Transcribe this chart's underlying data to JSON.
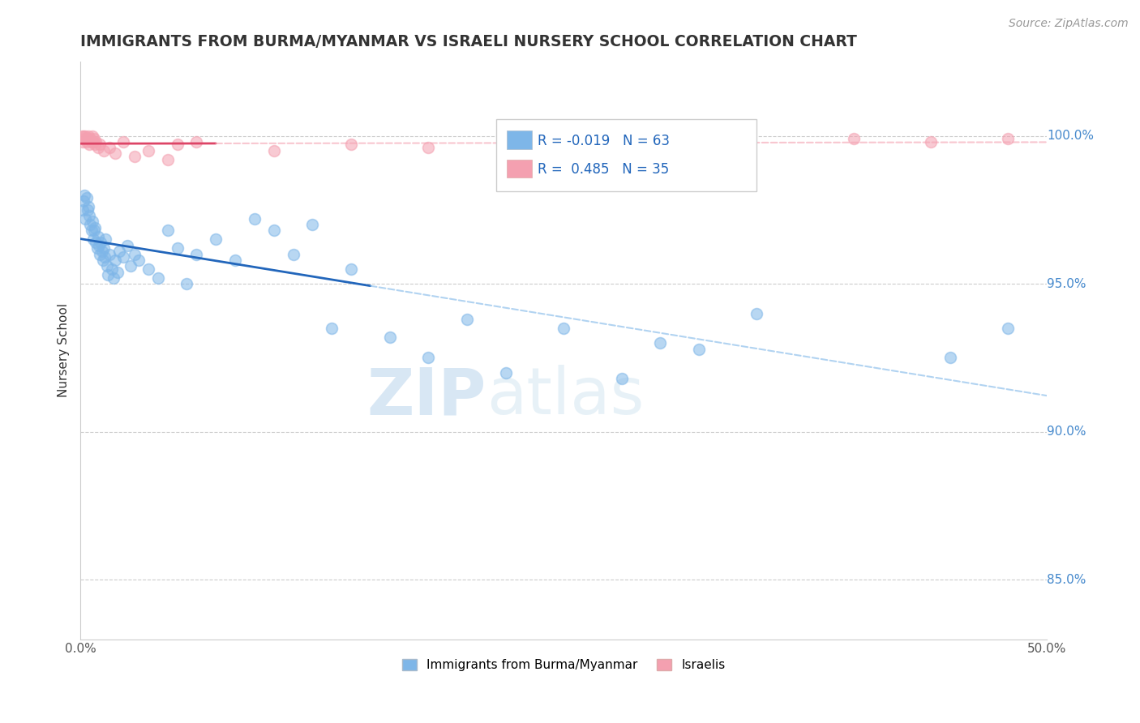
{
  "title": "IMMIGRANTS FROM BURMA/MYANMAR VS ISRAELI NURSERY SCHOOL CORRELATION CHART",
  "source": "Source: ZipAtlas.com",
  "ylabel": "Nursery School",
  "xlim": [
    0.0,
    50.0
  ],
  "ylim": [
    83.0,
    102.5
  ],
  "yticks": [
    85.0,
    90.0,
    95.0,
    100.0
  ],
  "ytick_labels": [
    "85.0%",
    "90.0%",
    "95.0%",
    "100.0%"
  ],
  "xtick_labels": [
    "0.0%",
    "",
    "",
    "",
    "",
    "50.0%"
  ],
  "xticks": [
    0.0,
    10.0,
    20.0,
    30.0,
    40.0,
    50.0
  ],
  "legend_label1": "Immigrants from Burma/Myanmar",
  "legend_label2": "Israelis",
  "R1": -0.019,
  "N1": 63,
  "R2": 0.485,
  "N2": 35,
  "color_blue": "#7EB6E8",
  "color_pink": "#F4A0B0",
  "color_blue_line": "#2266BB",
  "color_pink_line": "#DD4466",
  "color_pink_dashed": "#F4A0B0",
  "color_blue_dashed": "#7EB6E8",
  "watermark_zip": "ZIP",
  "watermark_atlas": "atlas",
  "blue_solid_end": 15.0,
  "pink_solid_end": 7.0,
  "blue_points": [
    [
      0.1,
      97.5
    ],
    [
      0.15,
      97.8
    ],
    [
      0.2,
      98.0
    ],
    [
      0.25,
      97.2
    ],
    [
      0.3,
      97.9
    ],
    [
      0.35,
      97.5
    ],
    [
      0.4,
      97.6
    ],
    [
      0.45,
      97.3
    ],
    [
      0.5,
      97.0
    ],
    [
      0.55,
      96.8
    ],
    [
      0.6,
      97.1
    ],
    [
      0.65,
      96.5
    ],
    [
      0.7,
      96.8
    ],
    [
      0.75,
      96.9
    ],
    [
      0.8,
      96.4
    ],
    [
      0.85,
      96.2
    ],
    [
      0.9,
      96.6
    ],
    [
      0.95,
      96.3
    ],
    [
      1.0,
      96.0
    ],
    [
      1.05,
      96.4
    ],
    [
      1.1,
      96.1
    ],
    [
      1.15,
      95.8
    ],
    [
      1.2,
      96.2
    ],
    [
      1.25,
      95.9
    ],
    [
      1.3,
      96.5
    ],
    [
      1.35,
      95.6
    ],
    [
      1.4,
      95.3
    ],
    [
      1.5,
      96.0
    ],
    [
      1.6,
      95.5
    ],
    [
      1.7,
      95.2
    ],
    [
      1.8,
      95.8
    ],
    [
      1.9,
      95.4
    ],
    [
      2.0,
      96.1
    ],
    [
      2.2,
      95.9
    ],
    [
      2.4,
      96.3
    ],
    [
      2.6,
      95.6
    ],
    [
      2.8,
      96.0
    ],
    [
      3.0,
      95.8
    ],
    [
      3.5,
      95.5
    ],
    [
      4.0,
      95.2
    ],
    [
      4.5,
      96.8
    ],
    [
      5.0,
      96.2
    ],
    [
      5.5,
      95.0
    ],
    [
      6.0,
      96.0
    ],
    [
      7.0,
      96.5
    ],
    [
      8.0,
      95.8
    ],
    [
      9.0,
      97.2
    ],
    [
      10.0,
      96.8
    ],
    [
      11.0,
      96.0
    ],
    [
      12.0,
      97.0
    ],
    [
      13.0,
      93.5
    ],
    [
      14.0,
      95.5
    ],
    [
      16.0,
      93.2
    ],
    [
      18.0,
      92.5
    ],
    [
      20.0,
      93.8
    ],
    [
      22.0,
      92.0
    ],
    [
      25.0,
      93.5
    ],
    [
      28.0,
      91.8
    ],
    [
      30.0,
      93.0
    ],
    [
      32.0,
      92.8
    ],
    [
      35.0,
      94.0
    ],
    [
      45.0,
      92.5
    ],
    [
      48.0,
      93.5
    ]
  ],
  "pink_points": [
    [
      0.05,
      100.0
    ],
    [
      0.1,
      99.8
    ],
    [
      0.15,
      100.0
    ],
    [
      0.2,
      99.9
    ],
    [
      0.25,
      100.0
    ],
    [
      0.3,
      99.8
    ],
    [
      0.35,
      99.9
    ],
    [
      0.4,
      100.0
    ],
    [
      0.45,
      99.7
    ],
    [
      0.5,
      99.9
    ],
    [
      0.55,
      99.8
    ],
    [
      0.6,
      100.0
    ],
    [
      0.65,
      99.8
    ],
    [
      0.7,
      99.9
    ],
    [
      0.75,
      99.7
    ],
    [
      0.8,
      99.8
    ],
    [
      0.9,
      99.6
    ],
    [
      1.0,
      99.7
    ],
    [
      1.2,
      99.5
    ],
    [
      1.5,
      99.6
    ],
    [
      1.8,
      99.4
    ],
    [
      2.2,
      99.8
    ],
    [
      2.8,
      99.3
    ],
    [
      3.5,
      99.5
    ],
    [
      4.5,
      99.2
    ],
    [
      5.0,
      99.7
    ],
    [
      6.0,
      99.8
    ],
    [
      10.0,
      99.5
    ],
    [
      14.0,
      99.7
    ],
    [
      18.0,
      99.6
    ],
    [
      22.0,
      99.8
    ],
    [
      30.0,
      99.7
    ],
    [
      40.0,
      99.9
    ],
    [
      44.0,
      99.8
    ],
    [
      48.0,
      99.9
    ]
  ]
}
